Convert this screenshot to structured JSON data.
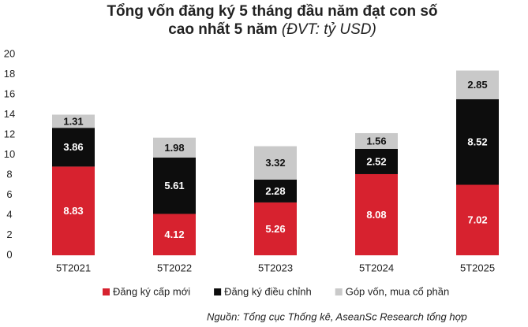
{
  "chart_data": {
    "type": "stacked_bar",
    "title": [
      "Tổng vốn đăng ký 5 tháng đầu năm đạt con số",
      "cao nhất 5 năm"
    ],
    "subtitle": "(ĐVT: tỷ USD)",
    "categories": [
      "5T2021",
      "5T2022",
      "5T2023",
      "5T2024",
      "5T2025"
    ],
    "series": [
      {
        "name": "Đăng ký cấp mới",
        "color": "#d7222f",
        "values": [
          8.83,
          4.12,
          5.26,
          8.08,
          7.02
        ]
      },
      {
        "name": "Đăng ký điều chỉnh",
        "color": "#0d0d0d",
        "values": [
          3.86,
          5.61,
          2.28,
          2.52,
          8.52
        ]
      },
      {
        "name": "Góp vốn, mua cổ phần",
        "color": "#c9c9c9",
        "values": [
          1.31,
          1.98,
          3.32,
          1.56,
          2.85
        ]
      }
    ],
    "ylim": [
      0,
      20
    ],
    "yticks": [
      0,
      2,
      4,
      6,
      8,
      10,
      12,
      14,
      16,
      18,
      20
    ],
    "grid": false,
    "legend": "bottom",
    "source": "Nguồn: Tổng cục Thống kê, AseanSc Research tổng hợp"
  }
}
